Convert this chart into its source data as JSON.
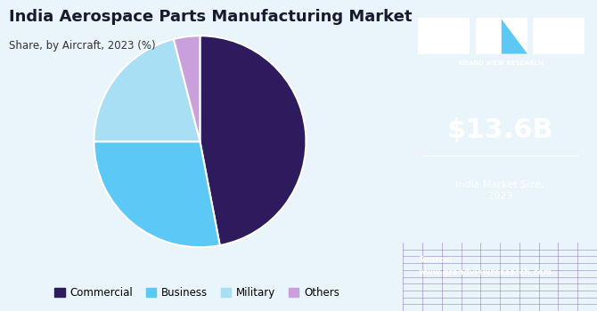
{
  "title": "India Aerospace Parts Manufacturing Market",
  "subtitle": "Share, by Aircraft, 2023 (%)",
  "segments": [
    "Commercial",
    "Business",
    "Military",
    "Others"
  ],
  "values": [
    47,
    28,
    21,
    4
  ],
  "colors": [
    "#2d1b5e",
    "#5bc8f5",
    "#a8dff5",
    "#c9a0dc"
  ],
  "startangle": 90,
  "bg_color": "#eaf4fb",
  "right_panel_color": "#3b1f6e",
  "right_panel_text_color": "#ffffff",
  "market_size": "$13.6B",
  "market_label": "India Market Size,\n2023",
  "source_text": "Source:\nwww.grandviewresearch.com",
  "legend_labels": [
    "Commercial",
    "Business",
    "Military",
    "Others"
  ],
  "title_color": "#1a1a2e",
  "subtitle_color": "#333333"
}
